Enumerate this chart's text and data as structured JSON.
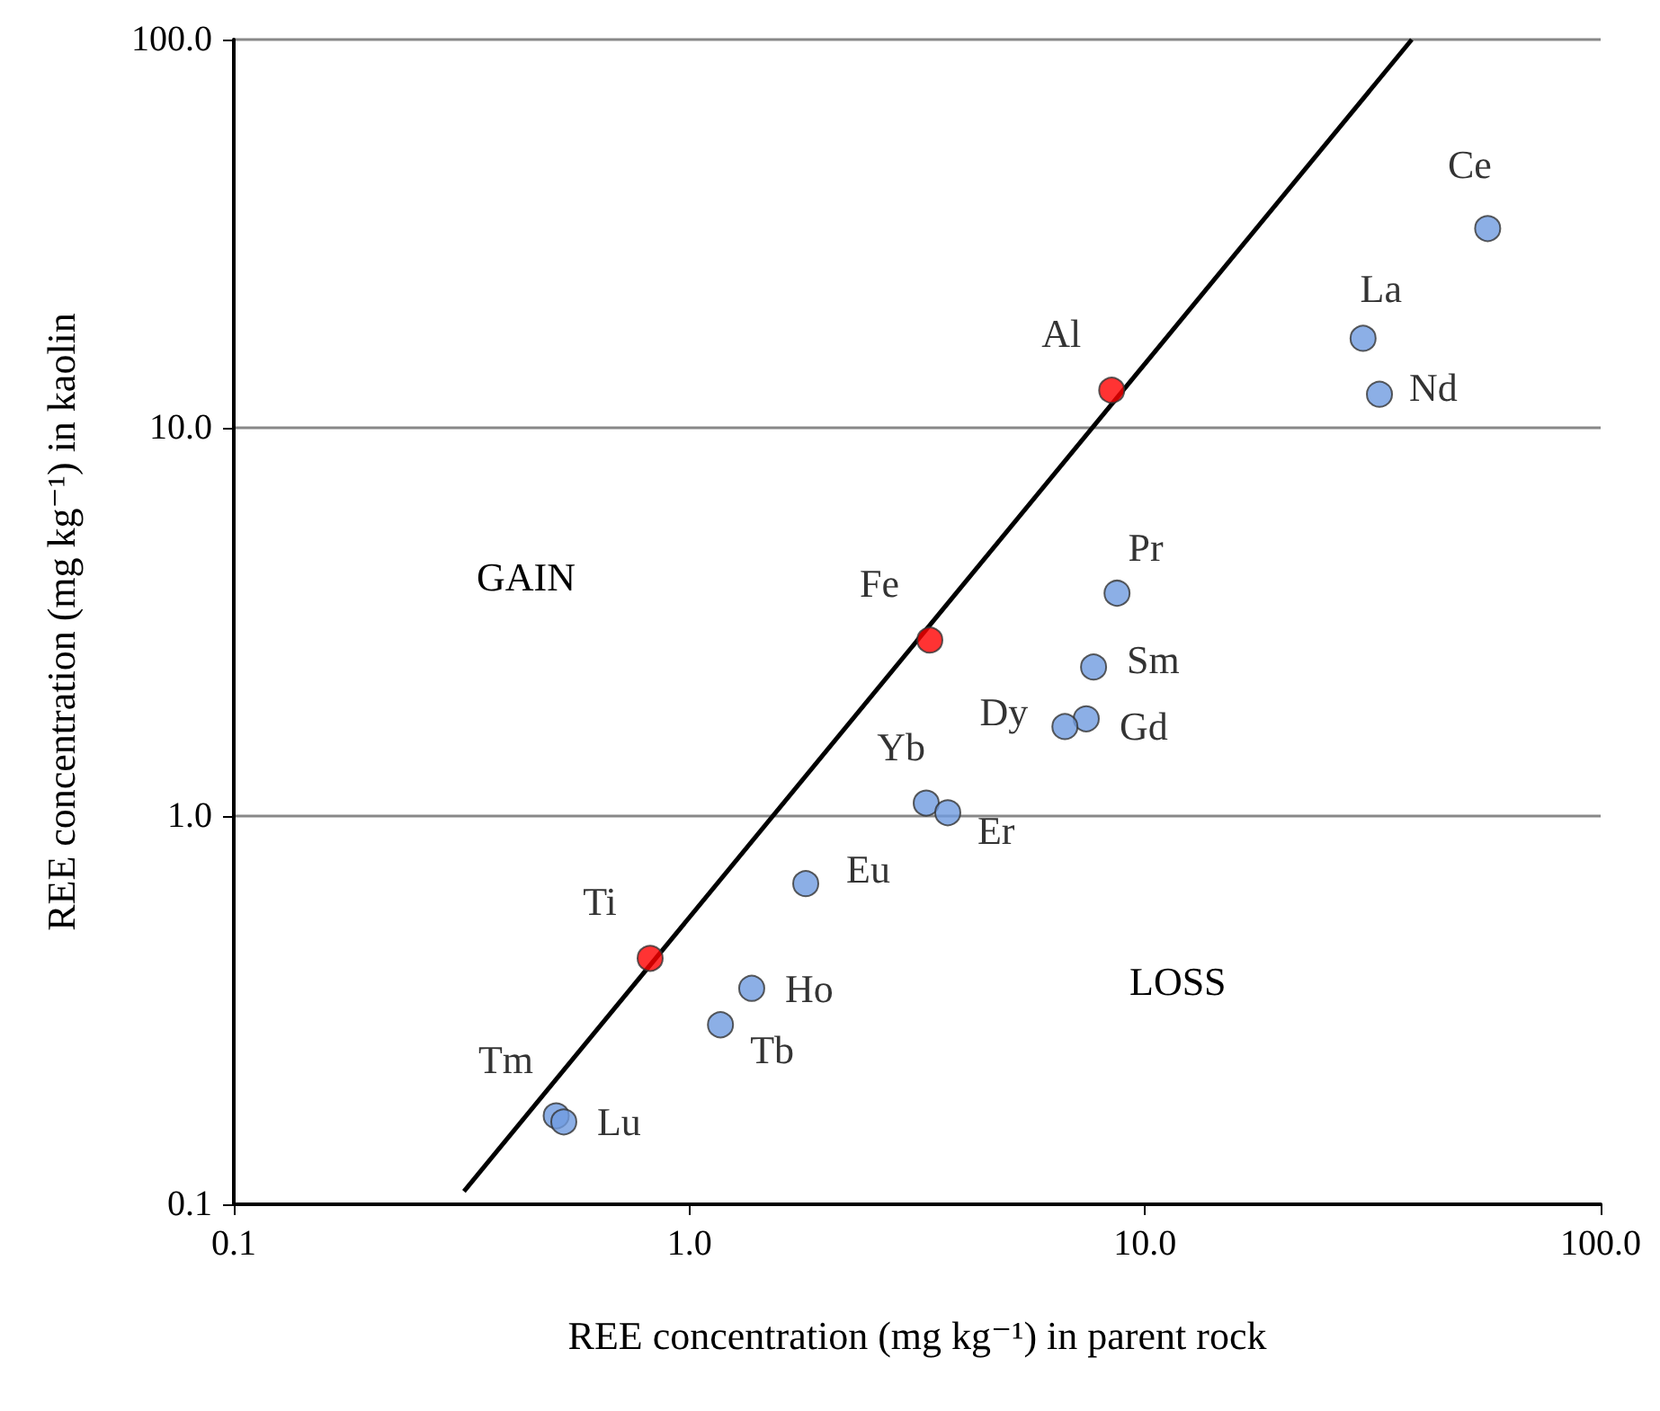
{
  "chart_data": {
    "type": "scatter",
    "xlabel": "REE concentration (mg kg⁻¹) in parent rock",
    "ylabel": "REE concentration (mg kg⁻¹) in kaolin",
    "log": "xy",
    "xlim": [
      0.1,
      100
    ],
    "ylim": [
      0.1,
      100
    ],
    "xticks": [
      {
        "value": 0.1,
        "label": "0.1"
      },
      {
        "value": 1,
        "label": "1.0"
      },
      {
        "value": 10,
        "label": "10.0"
      },
      {
        "value": 100,
        "label": "100.0"
      }
    ],
    "yticks": [
      {
        "value": 0.1,
        "label": "0.1"
      },
      {
        "value": 1,
        "label": "1.0"
      },
      {
        "value": 10,
        "label": "10.0"
      },
      {
        "value": 100,
        "label": "100.0"
      }
    ],
    "grid": "y",
    "marker": "circle",
    "series": [
      {
        "type": "line",
        "marker": "none",
        "color": "#000000",
        "x": [
          0.32,
          38.5
        ],
        "values": [
          0.108,
          100
        ]
      },
      {
        "color": "#ff0000",
        "x": [
          8.45,
          3.37,
          0.82
        ],
        "values": [
          12.5,
          2.84,
          0.43
        ],
        "value_labels": [
          "Al",
          "Fe",
          "Ti"
        ]
      },
      {
        "color": "#6f9be0",
        "x": [
          56.5,
          30.1,
          32.7,
          8.68,
          7.71,
          7.43,
          6.67,
          3.31,
          3.69,
          1.8,
          1.37,
          1.17,
          0.51,
          0.53
        ],
        "values": [
          32.6,
          17.0,
          12.2,
          3.75,
          2.42,
          1.78,
          1.7,
          1.08,
          1.02,
          0.67,
          0.36,
          0.29,
          0.169,
          0.163
        ],
        "value_labels": [
          "Ce",
          "La",
          "Nd",
          "Pr",
          "Sm",
          "Gd",
          "Dy",
          "Yb",
          "Er",
          "Eu",
          "Ho",
          "Tb",
          "Tm",
          "Lu"
        ]
      }
    ],
    "annotations": [
      "GAIN",
      "LOSS"
    ]
  }
}
